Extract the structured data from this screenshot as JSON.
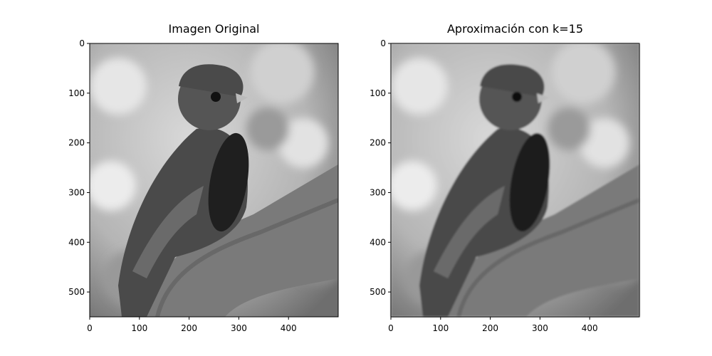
{
  "chart_data": [
    {
      "type": "image",
      "title": "Imagen Original",
      "xlim": [
        0,
        500
      ],
      "ylim": [
        550,
        0
      ],
      "xticks": [
        0,
        100,
        200,
        300,
        400
      ],
      "yticks": [
        0,
        100,
        200,
        300,
        400,
        500
      ]
    },
    {
      "type": "image",
      "title": "Aproximación con k=15",
      "xlim": [
        0,
        500
      ],
      "ylim": [
        550,
        0
      ],
      "xticks": [
        0,
        100,
        200,
        300,
        400
      ],
      "yticks": [
        0,
        100,
        200,
        300,
        400,
        500
      ]
    }
  ]
}
